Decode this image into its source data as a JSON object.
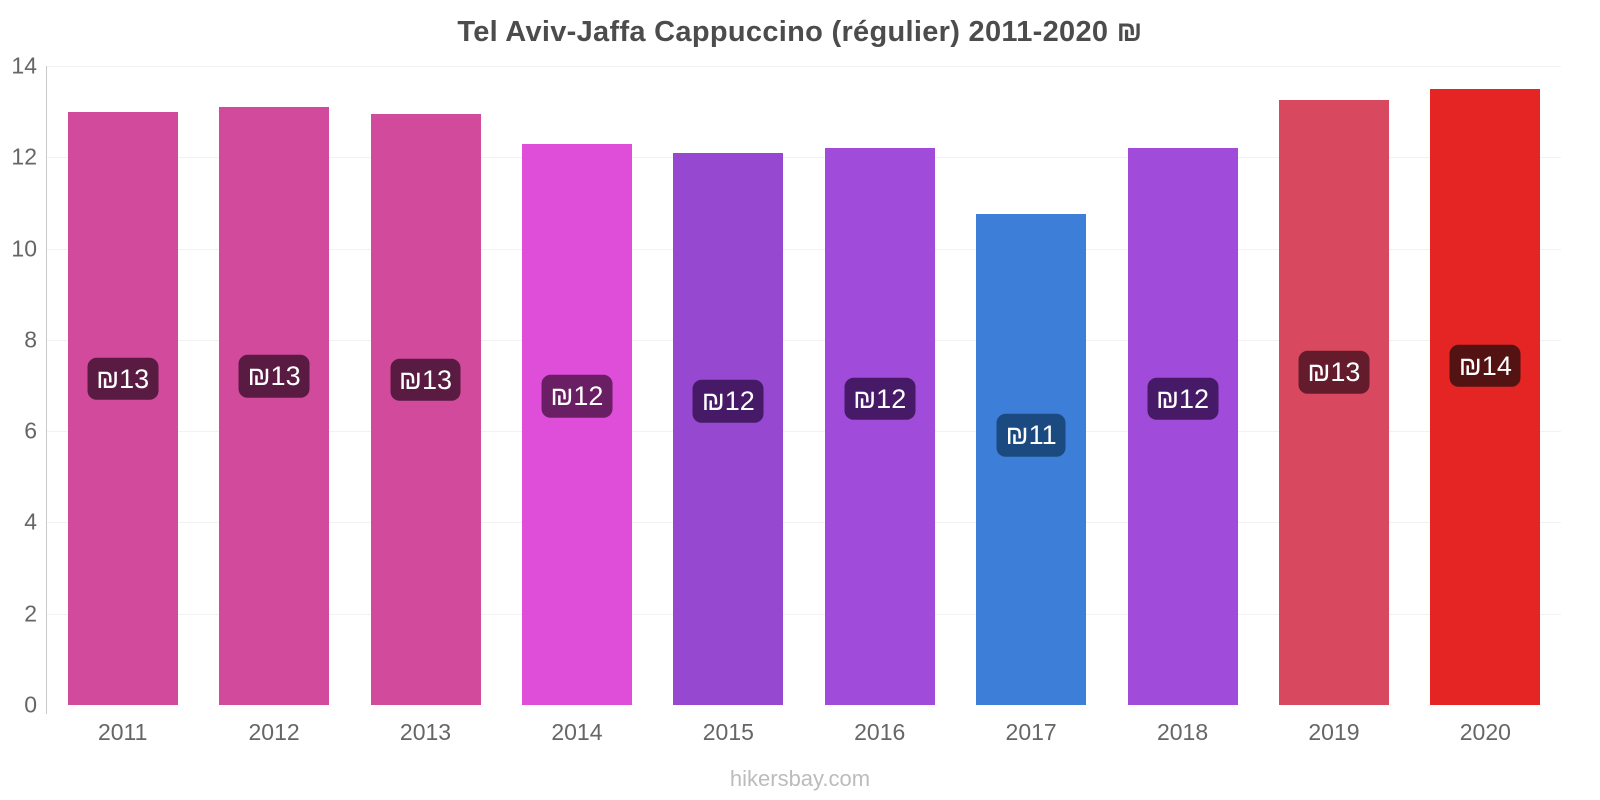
{
  "chart_data": {
    "type": "bar",
    "title": "Tel Aviv-Jaffa Cappuccino (régulier) 2011-2020 ₪",
    "categories": [
      "2011",
      "2012",
      "2013",
      "2014",
      "2015",
      "2016",
      "2017",
      "2018",
      "2019",
      "2020"
    ],
    "values": [
      13.0,
      13.1,
      12.95,
      12.3,
      12.1,
      12.2,
      10.75,
      12.2,
      13.25,
      13.5
    ],
    "bar_labels": [
      "₪13",
      "₪13",
      "₪13",
      "₪12",
      "₪12",
      "₪12",
      "₪11",
      "₪12",
      "₪13",
      "₪14"
    ],
    "bar_colors": [
      "#d24a9c",
      "#d24a9c",
      "#d24a9c",
      "#de4ed9",
      "#9649d0",
      "#a14bdb",
      "#3d7ed8",
      "#a14bdb",
      "#d8495f",
      "#e42524"
    ],
    "label_bg_colors": [
      "#5a1b43",
      "#5a1b43",
      "#5a1b43",
      "#6a1e63",
      "#471a67",
      "#471a67",
      "#1b4a80",
      "#471a67",
      "#641c2d",
      "#521312"
    ],
    "xlabel": "",
    "ylabel": "",
    "ylim": [
      0,
      14
    ],
    "yticks": [
      0,
      2,
      4,
      6,
      8,
      10,
      12,
      14
    ],
    "grid": true,
    "legend": "none"
  },
  "footer": {
    "text": "hikersbay.com"
  }
}
